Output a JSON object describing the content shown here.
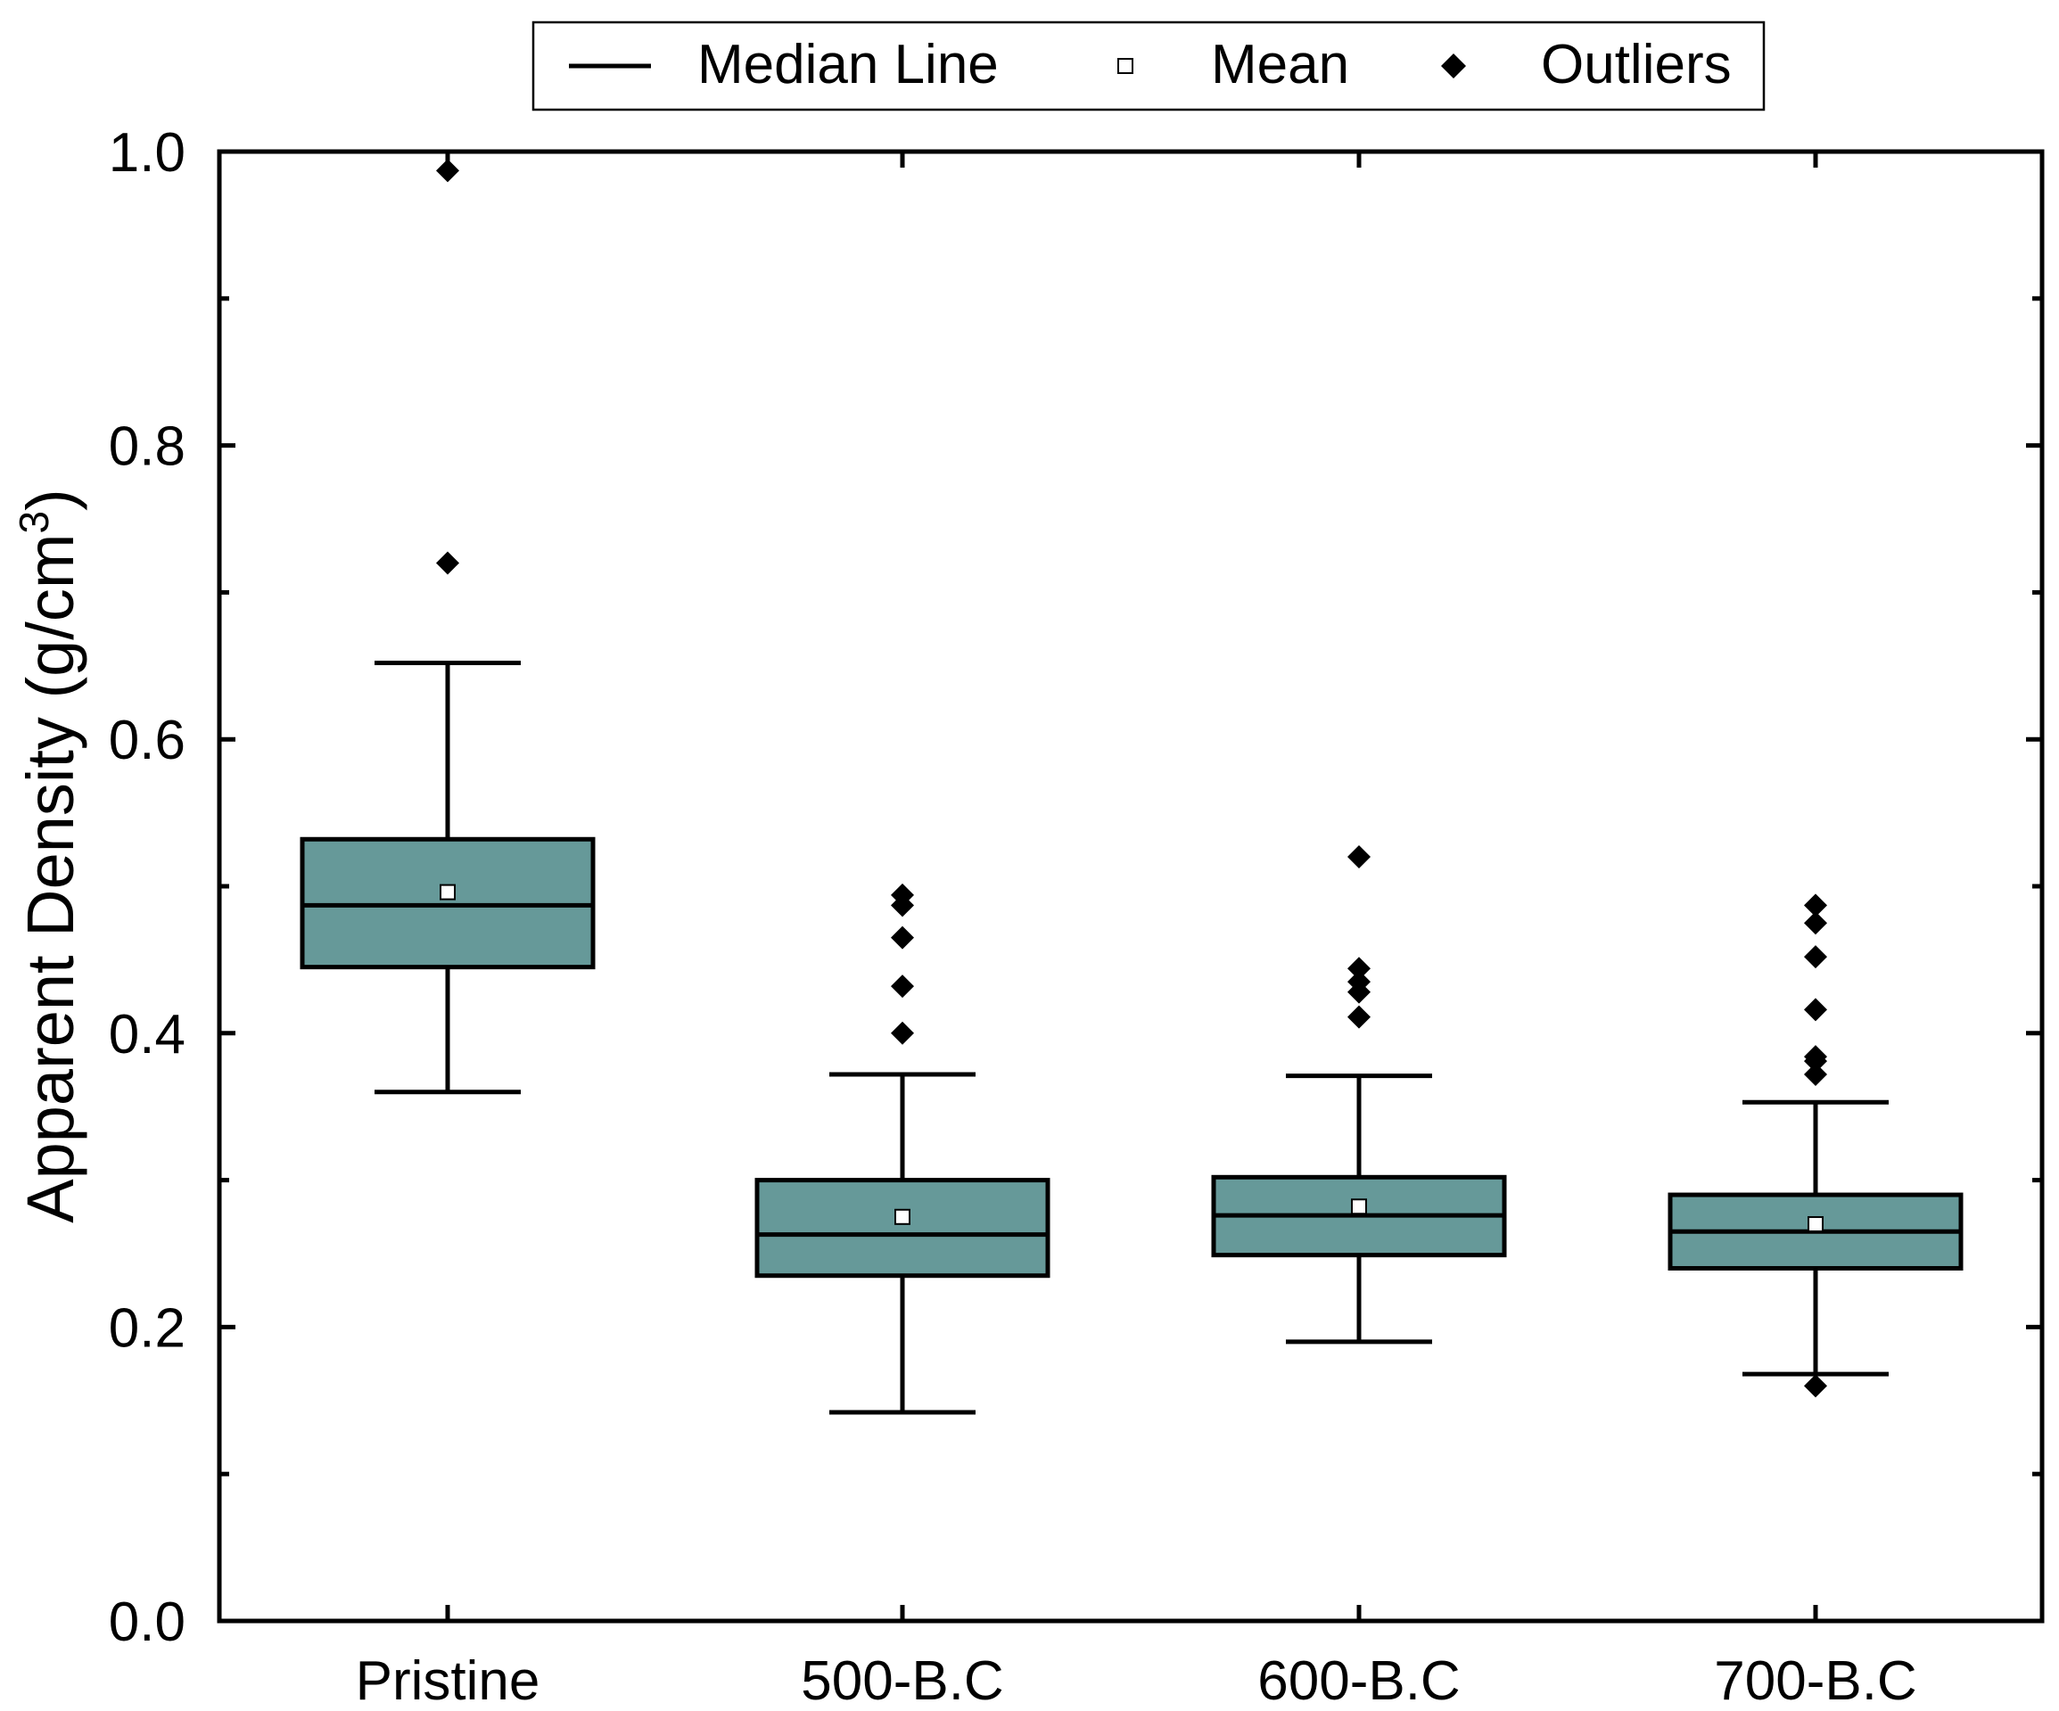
{
  "chart_data": {
    "type": "box",
    "title": "",
    "xlabel": "",
    "ylabel": "Apparent Density (g/cm",
    "ylabel_superscript": "3",
    "ylabel_close": ")",
    "ylim": [
      0.0,
      1.0
    ],
    "yticks": [
      "0.0",
      "0.2",
      "0.4",
      "0.6",
      "0.8",
      "1.0"
    ],
    "ytick_values": [
      0.0,
      0.2,
      0.4,
      0.6,
      0.8,
      1.0
    ],
    "legend": {
      "position": "top-center",
      "items": [
        {
          "label": "Median Line",
          "marker": "line"
        },
        {
          "label": "Mean",
          "marker": "open-square"
        },
        {
          "label": "Outliers",
          "marker": "filled-diamond"
        }
      ]
    },
    "box_color": "#669999",
    "categories": [
      "Pristine",
      "500-B.C",
      "600-B.C",
      "700-B.C"
    ],
    "boxes": [
      {
        "name": "Pristine",
        "whisker_low": 0.36,
        "q1": 0.445,
        "median": 0.487,
        "q3": 0.532,
        "whisker_high": 0.652,
        "mean": 0.496,
        "outliers": [
          0.72,
          0.987
        ]
      },
      {
        "name": "500-B.C",
        "whisker_low": 0.142,
        "q1": 0.235,
        "median": 0.263,
        "q3": 0.3,
        "whisker_high": 0.372,
        "mean": 0.275,
        "outliers": [
          0.4,
          0.432,
          0.465,
          0.487,
          0.494
        ]
      },
      {
        "name": "600-B.C",
        "whisker_low": 0.19,
        "q1": 0.249,
        "median": 0.276,
        "q3": 0.302,
        "whisker_high": 0.371,
        "mean": 0.282,
        "outliers": [
          0.411,
          0.428,
          0.435,
          0.444,
          0.52
        ]
      },
      {
        "name": "700-B.C",
        "whisker_low": 0.168,
        "q1": 0.24,
        "median": 0.265,
        "q3": 0.29,
        "whisker_high": 0.353,
        "mean": 0.27,
        "outliers": [
          0.16,
          0.372,
          0.381,
          0.384,
          0.416,
          0.452,
          0.475,
          0.487
        ]
      }
    ]
  }
}
